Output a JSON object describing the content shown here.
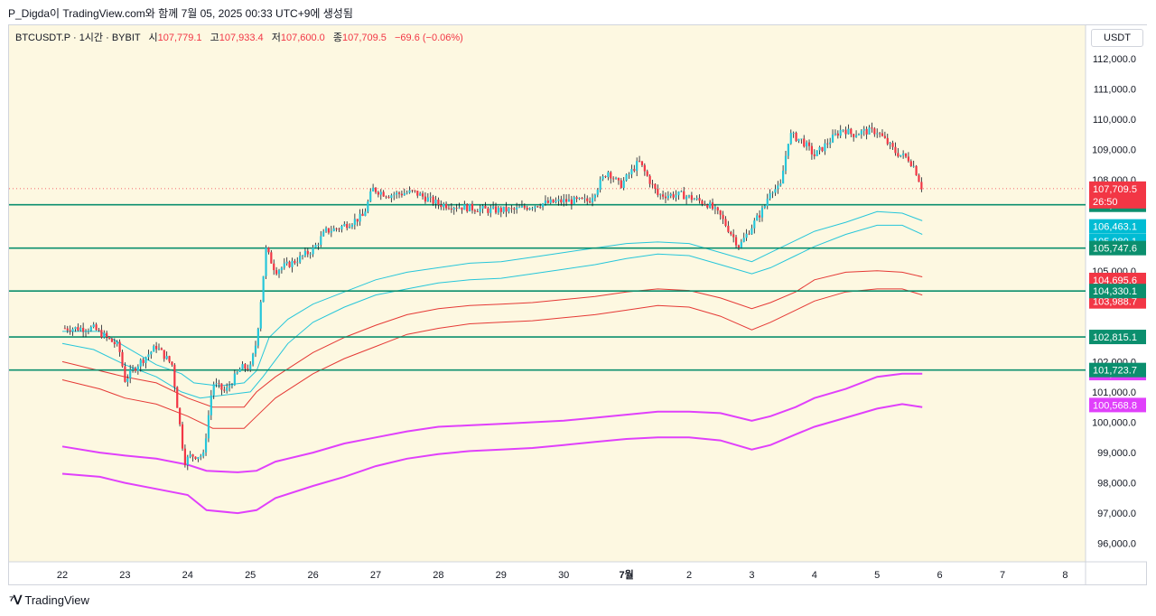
{
  "caption": "P_Digda이 TradingView.com와 함께 7월 05, 2025 00:33 UTC+9에 생성됨",
  "brand": "TradingView",
  "legend": {
    "symbol": "BTCUSDT.P · 1시간 · BYBIT",
    "open_label": "시",
    "open": "107,779.1",
    "high_label": "고",
    "high": "107,933.4",
    "low_label": "저",
    "low": "107,600.0",
    "close_label": "종",
    "close": "107,709.5",
    "change": "−69.6 (−0.06%)"
  },
  "currency": "USDT",
  "colors": {
    "background": "#fdf8e1",
    "up": "#26c6da",
    "down": "#f23645",
    "level_line": "#0b8f6e",
    "outer_band": "#e040fb",
    "red_band": "#e53935",
    "cyan_band": "#26c6da"
  },
  "chart_data": {
    "type": "candlestick",
    "ylim": [
      95000,
      113000
    ],
    "x_ticks": [
      "22",
      "23",
      "24",
      "25",
      "26",
      "27",
      "28",
      "29",
      "30",
      "7월",
      "2",
      "3",
      "4",
      "5",
      "6",
      "7",
      "8"
    ],
    "y_ticks": [
      "112,000.0",
      "111,000.0",
      "110,000.0",
      "109,000.0",
      "108,000.0",
      "105,000.0",
      "102,000.0",
      "101,000.0",
      "100,000.0",
      "99,000.0",
      "98,000.0",
      "97,000.0",
      "96,000.0"
    ],
    "y_tick_values": [
      112000,
      111000,
      110000,
      109000,
      108000,
      105000,
      102000,
      101000,
      100000,
      99000,
      98000,
      97000,
      96000
    ],
    "current_price": {
      "label": "107,709.5",
      "value": 107709.5,
      "countdown": "26:50"
    },
    "horizontal_levels": [
      {
        "value": 107176.6,
        "label": "107,176.6"
      },
      {
        "value": 105747.6,
        "label": "105,747.6"
      },
      {
        "value": 104330.1,
        "label": "104,330.1"
      },
      {
        "value": 102815.1,
        "label": "102,815.1"
      },
      {
        "value": 101723.7,
        "label": "101,723.7"
      }
    ],
    "band_labels": [
      {
        "value": 106463.1,
        "label": "106,463.1",
        "color": "#00bcd4"
      },
      {
        "value": 105980.1,
        "label": "105,980.1",
        "color": "#00bcd4"
      },
      {
        "value": 104695.6,
        "label": "104,695.6",
        "color": "#f23645"
      },
      {
        "value": 103988.7,
        "label": "103,988.7",
        "color": "#f23645"
      },
      {
        "value": 101622.5,
        "label": "101,622.5",
        "color": "#e040fb"
      },
      {
        "value": 100568.8,
        "label": "100,568.8",
        "color": "#e040fb"
      }
    ],
    "price_path": [
      [
        0,
        103100
      ],
      [
        0.5,
        103100
      ],
      [
        0.9,
        102500
      ],
      [
        1.0,
        101400
      ],
      [
        1.2,
        101900
      ],
      [
        1.5,
        102500
      ],
      [
        1.75,
        101900
      ],
      [
        1.95,
        98700
      ],
      [
        2.05,
        98900
      ],
      [
        2.25,
        98900
      ],
      [
        2.4,
        101300
      ],
      [
        2.6,
        101000
      ],
      [
        2.85,
        101800
      ],
      [
        3.0,
        101800
      ],
      [
        3.1,
        102700
      ],
      [
        3.25,
        105700
      ],
      [
        3.4,
        105000
      ],
      [
        3.7,
        105300
      ],
      [
        4.0,
        105700
      ],
      [
        4.2,
        106300
      ],
      [
        4.4,
        106400
      ],
      [
        4.8,
        106800
      ],
      [
        4.95,
        107700
      ],
      [
        5.2,
        107500
      ],
      [
        5.6,
        107600
      ],
      [
        6.0,
        107200
      ],
      [
        6.4,
        107100
      ],
      [
        6.8,
        107000
      ],
      [
        7.2,
        107000
      ],
      [
        7.6,
        107200
      ],
      [
        8.0,
        107300
      ],
      [
        8.4,
        107300
      ],
      [
        8.7,
        108300
      ],
      [
        8.9,
        107800
      ],
      [
        9.2,
        108600
      ],
      [
        9.5,
        107500
      ],
      [
        9.9,
        107500
      ],
      [
        10.3,
        107200
      ],
      [
        10.5,
        106800
      ],
      [
        10.8,
        105800
      ],
      [
        10.98,
        106400
      ],
      [
        11.2,
        107100
      ],
      [
        11.3,
        107700
      ],
      [
        11.45,
        107700
      ],
      [
        11.6,
        109500
      ],
      [
        11.8,
        109300
      ],
      [
        12.0,
        108800
      ],
      [
        12.2,
        109200
      ],
      [
        12.45,
        109700
      ],
      [
        12.6,
        109500
      ],
      [
        12.8,
        109600
      ],
      [
        13.0,
        109600
      ],
      [
        13.3,
        108900
      ],
      [
        13.5,
        108700
      ],
      [
        13.6,
        108400
      ],
      [
        13.72,
        107700
      ]
    ],
    "bands": [
      {
        "color": "#26c6da",
        "width": 1,
        "points": [
          [
            0,
            103000
          ],
          [
            0.6,
            103000
          ],
          [
            1,
            102500
          ],
          [
            1.5,
            101900
          ],
          [
            1.9,
            101600
          ],
          [
            2.1,
            101300
          ],
          [
            2.5,
            101200
          ],
          [
            2.9,
            101300
          ],
          [
            3.1,
            101700
          ],
          [
            3.3,
            102800
          ],
          [
            3.6,
            103400
          ],
          [
            4,
            103900
          ],
          [
            4.5,
            104300
          ],
          [
            5,
            104700
          ],
          [
            5.5,
            104950
          ],
          [
            6,
            105100
          ],
          [
            6.5,
            105250
          ],
          [
            7,
            105300
          ],
          [
            7.5,
            105450
          ],
          [
            8,
            105600
          ],
          [
            8.5,
            105750
          ],
          [
            9,
            105900
          ],
          [
            9.5,
            105950
          ],
          [
            10,
            105900
          ],
          [
            10.5,
            105600
          ],
          [
            11,
            105300
          ],
          [
            11.3,
            105600
          ],
          [
            11.7,
            106000
          ],
          [
            12,
            106300
          ],
          [
            12.5,
            106600
          ],
          [
            13,
            106950
          ],
          [
            13.4,
            106900
          ],
          [
            13.72,
            106650
          ]
        ]
      },
      {
        "color": "#26c6da",
        "width": 1,
        "points": [
          [
            0,
            102600
          ],
          [
            0.5,
            102400
          ],
          [
            1,
            101900
          ],
          [
            1.5,
            101500
          ],
          [
            1.9,
            101000
          ],
          [
            2.2,
            100800
          ],
          [
            2.6,
            100900
          ],
          [
            3,
            101000
          ],
          [
            3.2,
            101500
          ],
          [
            3.6,
            102600
          ],
          [
            4,
            103300
          ],
          [
            4.5,
            103800
          ],
          [
            5,
            104200
          ],
          [
            5.5,
            104400
          ],
          [
            6,
            104600
          ],
          [
            6.5,
            104700
          ],
          [
            7,
            104750
          ],
          [
            7.5,
            104900
          ],
          [
            8,
            105050
          ],
          [
            8.5,
            105200
          ],
          [
            9,
            105400
          ],
          [
            9.5,
            105550
          ],
          [
            10,
            105500
          ],
          [
            10.5,
            105200
          ],
          [
            11,
            104900
          ],
          [
            11.3,
            105100
          ],
          [
            11.7,
            105500
          ],
          [
            12,
            105800
          ],
          [
            12.5,
            106200
          ],
          [
            13,
            106500
          ],
          [
            13.4,
            106500
          ],
          [
            13.72,
            106200
          ]
        ]
      },
      {
        "color": "#e53935",
        "width": 1,
        "points": [
          [
            0,
            102000
          ],
          [
            0.6,
            101700
          ],
          [
            1,
            101500
          ],
          [
            1.5,
            101300
          ],
          [
            2,
            100800
          ],
          [
            2.4,
            100500
          ],
          [
            2.9,
            100500
          ],
          [
            3.1,
            101000
          ],
          [
            3.4,
            101500
          ],
          [
            4,
            102300
          ],
          [
            4.5,
            102800
          ],
          [
            5,
            103200
          ],
          [
            5.5,
            103550
          ],
          [
            6,
            103750
          ],
          [
            6.5,
            103850
          ],
          [
            7,
            103900
          ],
          [
            7.5,
            103950
          ],
          [
            8,
            104050
          ],
          [
            8.5,
            104150
          ],
          [
            9,
            104300
          ],
          [
            9.5,
            104400
          ],
          [
            10,
            104350
          ],
          [
            10.5,
            104100
          ],
          [
            11,
            103750
          ],
          [
            11.3,
            103950
          ],
          [
            11.7,
            104300
          ],
          [
            12,
            104700
          ],
          [
            12.5,
            104950
          ],
          [
            13,
            105000
          ],
          [
            13.4,
            104950
          ],
          [
            13.72,
            104800
          ]
        ]
      },
      {
        "color": "#e53935",
        "width": 1,
        "points": [
          [
            0,
            101400
          ],
          [
            0.6,
            101100
          ],
          [
            1,
            100800
          ],
          [
            1.5,
            100600
          ],
          [
            2,
            100200
          ],
          [
            2.4,
            99800
          ],
          [
            2.9,
            99800
          ],
          [
            3.1,
            100200
          ],
          [
            3.4,
            100800
          ],
          [
            4,
            101600
          ],
          [
            4.5,
            102100
          ],
          [
            5,
            102500
          ],
          [
            5.5,
            102900
          ],
          [
            6,
            103100
          ],
          [
            6.5,
            103250
          ],
          [
            7,
            103300
          ],
          [
            7.5,
            103350
          ],
          [
            8,
            103450
          ],
          [
            8.5,
            103550
          ],
          [
            9,
            103700
          ],
          [
            9.5,
            103850
          ],
          [
            10,
            103800
          ],
          [
            10.5,
            103500
          ],
          [
            11,
            103050
          ],
          [
            11.3,
            103300
          ],
          [
            11.7,
            103700
          ],
          [
            12,
            104000
          ],
          [
            12.5,
            104300
          ],
          [
            13,
            104400
          ],
          [
            13.4,
            104400
          ],
          [
            13.72,
            104200
          ]
        ]
      },
      {
        "color": "#e040fb",
        "width": 2,
        "points": [
          [
            0,
            99200
          ],
          [
            0.6,
            99000
          ],
          [
            1,
            98900
          ],
          [
            1.5,
            98800
          ],
          [
            2,
            98600
          ],
          [
            2.3,
            98400
          ],
          [
            2.8,
            98350
          ],
          [
            3.1,
            98400
          ],
          [
            3.4,
            98700
          ],
          [
            4,
            99000
          ],
          [
            4.5,
            99300
          ],
          [
            5,
            99500
          ],
          [
            5.5,
            99700
          ],
          [
            6,
            99850
          ],
          [
            6.5,
            99900
          ],
          [
            7,
            99950
          ],
          [
            7.5,
            100000
          ],
          [
            8,
            100050
          ],
          [
            8.5,
            100150
          ],
          [
            9,
            100250
          ],
          [
            9.5,
            100350
          ],
          [
            10,
            100350
          ],
          [
            10.5,
            100300
          ],
          [
            11,
            100050
          ],
          [
            11.3,
            100200
          ],
          [
            11.7,
            100500
          ],
          [
            12,
            100800
          ],
          [
            12.5,
            101100
          ],
          [
            13,
            101500
          ],
          [
            13.4,
            101600
          ],
          [
            13.72,
            101600
          ]
        ]
      },
      {
        "color": "#e040fb",
        "width": 2,
        "points": [
          [
            0,
            98300
          ],
          [
            0.6,
            98200
          ],
          [
            1,
            98000
          ],
          [
            1.5,
            97800
          ],
          [
            2,
            97600
          ],
          [
            2.3,
            97100
          ],
          [
            2.8,
            97000
          ],
          [
            3.1,
            97100
          ],
          [
            3.4,
            97500
          ],
          [
            4,
            97900
          ],
          [
            4.5,
            98200
          ],
          [
            5,
            98550
          ],
          [
            5.5,
            98800
          ],
          [
            6,
            98950
          ],
          [
            6.5,
            99050
          ],
          [
            7,
            99100
          ],
          [
            7.5,
            99150
          ],
          [
            8,
            99250
          ],
          [
            8.5,
            99350
          ],
          [
            9,
            99450
          ],
          [
            9.5,
            99500
          ],
          [
            10,
            99500
          ],
          [
            10.5,
            99400
          ],
          [
            11,
            99100
          ],
          [
            11.3,
            99250
          ],
          [
            11.7,
            99600
          ],
          [
            12,
            99850
          ],
          [
            12.5,
            100150
          ],
          [
            13,
            100450
          ],
          [
            13.4,
            100600
          ],
          [
            13.72,
            100500
          ]
        ]
      }
    ]
  }
}
